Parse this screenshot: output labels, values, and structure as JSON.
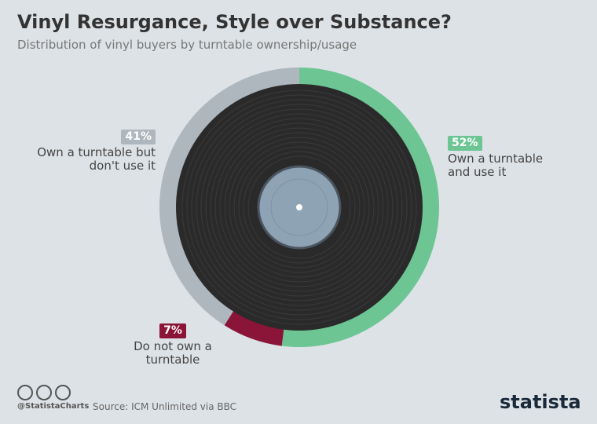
{
  "chart_data": {
    "type": "pie",
    "title": "Vinyl Resurgance, Style over Substance?",
    "subtitle": "Distribution of vinyl buyers by turntable ownership/usage",
    "categories": [
      "Own a turntable and use it",
      "Do not own a turntable",
      "Own a turntable but don't use it"
    ],
    "values": [
      52,
      7,
      41
    ],
    "value_labels": [
      "52%",
      "7%",
      "41%"
    ],
    "colors": [
      "#6cc593",
      "#8a1538",
      "#aeb7be"
    ],
    "source": "Source: ICM Unlimited via BBC",
    "handle": "@StatistaCharts",
    "brand": "statista"
  }
}
